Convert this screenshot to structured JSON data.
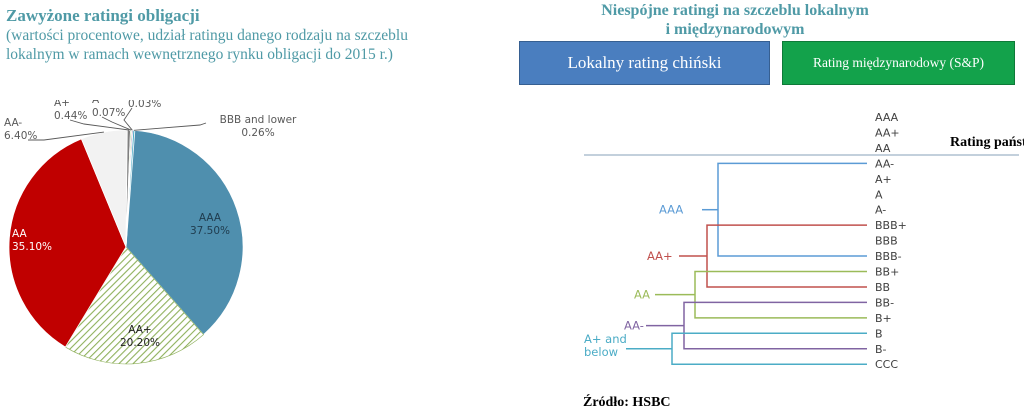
{
  "left": {
    "title": "Zawyżone ratingi obligacji",
    "subtitle_line1": "(wartości procentowe, udział ratingu danego rodzaju na szczeblu",
    "subtitle_line2": "lokalnym w ramach wewnętrznego rynku obligacji do 2015 r.)"
  },
  "right": {
    "title_line1": "Niespójne ratingi na szczeblu lokalnym",
    "title_line2": "i międzynarodowym",
    "legend_local": "Lokalny rating chiński",
    "legend_international": "Rating międzynarodowy (S&P)",
    "sovereign_label": "Rating państw"
  },
  "source": "Źródło: HSBC",
  "chart_data": [
    {
      "type": "pie",
      "title": "Zawyżone ratingi obligacji",
      "slices": [
        {
          "label": "AAA",
          "value": 37.5,
          "display": "37.50%",
          "color": "#4f8fae"
        },
        {
          "label": "AA+",
          "value": 20.2,
          "display": "20.20%",
          "color": "#8fb15c",
          "pattern": "hatch"
        },
        {
          "label": "AA",
          "value": 35.1,
          "display": "35.10%",
          "color": "#c00000"
        },
        {
          "label": "AA-",
          "value": 6.4,
          "display": "6.40%",
          "color": "#f2f2f2"
        },
        {
          "label": "A+",
          "value": 0.44,
          "display": "0.44%",
          "color": "#7f7f7f"
        },
        {
          "label": "A",
          "value": 0.07,
          "display": "0.07%",
          "color": "#9bbb59"
        },
        {
          "label": "A-",
          "value": 0.03,
          "display": "0.03%",
          "color": "#8064a2"
        },
        {
          "label": "BBB and lower",
          "value": 0.26,
          "display": "0.26%",
          "color": "#4bacc6"
        }
      ]
    },
    {
      "type": "mapping",
      "title": "Niespójne ratingi na szczeblu lokalnym i międzynarodowym",
      "international_scale": [
        "AAA",
        "AA+",
        "AA",
        "AA-",
        "A+",
        "A",
        "A-",
        "BBB+",
        "BBB",
        "BBB-",
        "BB+",
        "BB",
        "BB-",
        "B+",
        "B",
        "B-",
        "CCC"
      ],
      "local_ratings": [
        {
          "label": "AAA",
          "color": "#5b9bd5",
          "maps_to": [
            "AA-",
            "BBB-"
          ]
        },
        {
          "label": "AA+",
          "color": "#c0504d",
          "maps_to": [
            "BBB+",
            "BB"
          ]
        },
        {
          "label": "AA",
          "color": "#9bbb59",
          "maps_to": [
            "BB+",
            "B+"
          ]
        },
        {
          "label": "AA-",
          "color": "#8064a2",
          "maps_to": [
            "BB-",
            "B-"
          ]
        },
        {
          "label": "A+ and below",
          "color": "#4bacc6",
          "maps_to": [
            "B",
            "CCC"
          ]
        }
      ],
      "sovereign_rating_label": "Rating państw"
    }
  ]
}
